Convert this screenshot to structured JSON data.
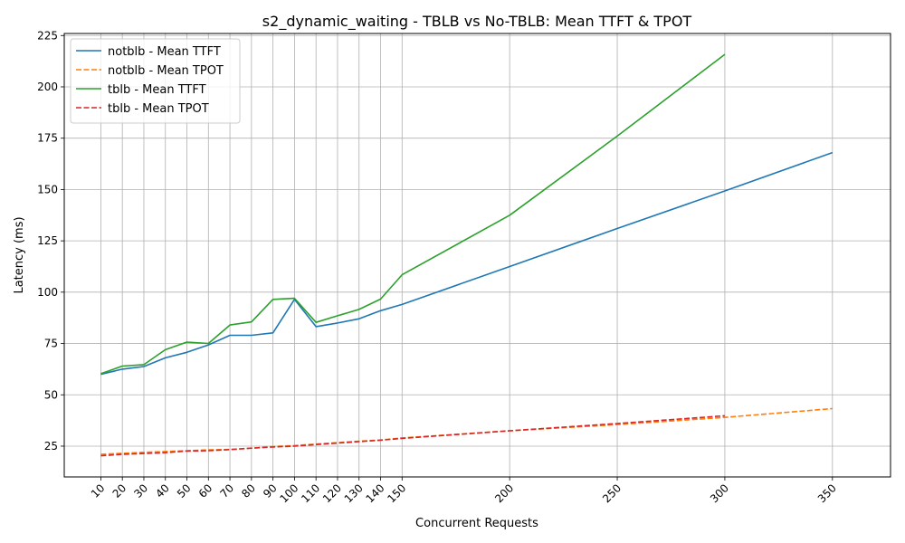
{
  "chart_data": {
    "type": "line",
    "title": "s2_dynamic_waiting - TBLB vs No-TBLB: Mean TTFT & TPOT",
    "xlabel": "Concurrent Requests",
    "ylabel": "Latency (ms)",
    "xlim": [
      -7,
      377
    ],
    "ylim": [
      10,
      226
    ],
    "xticks": [
      10,
      20,
      30,
      40,
      50,
      60,
      70,
      80,
      90,
      100,
      110,
      120,
      130,
      140,
      150,
      200,
      250,
      300,
      350
    ],
    "yticks": [
      25,
      50,
      75,
      100,
      125,
      150,
      175,
      200,
      225
    ],
    "grid": true,
    "legend_position": "top-left",
    "series": [
      {
        "name": "notblb - Mean TTFT",
        "color": "#1f77b4",
        "dashed": false,
        "x": [
          10,
          20,
          30,
          40,
          50,
          60,
          70,
          80,
          90,
          100,
          110,
          120,
          130,
          140,
          150,
          200,
          250,
          300,
          350
        ],
        "y": [
          60,
          62.5,
          63.8,
          68,
          70.7,
          74.3,
          79,
          79,
          80.2,
          96.5,
          83.2,
          85,
          87,
          91,
          94,
          112.5,
          131,
          149.3,
          168
        ]
      },
      {
        "name": "notblb - Mean TPOT",
        "color": "#ff7f0e",
        "dashed": true,
        "x": [
          10,
          20,
          30,
          40,
          50,
          60,
          70,
          80,
          90,
          100,
          110,
          120,
          130,
          140,
          150,
          200,
          250,
          300,
          350
        ],
        "y": [
          21,
          21.5,
          22,
          22.4,
          22.8,
          23.2,
          23.4,
          24,
          24.8,
          25.3,
          26,
          26.7,
          27.4,
          28,
          29,
          32.5,
          35.5,
          39,
          43.3
        ]
      },
      {
        "name": "tblb - Mean TTFT",
        "color": "#2ca02c",
        "dashed": false,
        "x": [
          10,
          20,
          30,
          40,
          50,
          60,
          70,
          80,
          90,
          100,
          110,
          120,
          130,
          140,
          150,
          200,
          250,
          300
        ],
        "y": [
          60.3,
          64,
          64.7,
          72,
          75.7,
          75,
          84,
          85.5,
          96.5,
          97,
          85.3,
          88.5,
          91.6,
          96.6,
          108.5,
          137.5,
          176,
          215.8
        ]
      },
      {
        "name": "tblb - Mean TPOT",
        "color": "#d62728",
        "dashed": true,
        "x": [
          10,
          20,
          30,
          40,
          50,
          60,
          70,
          80,
          90,
          100,
          110,
          120,
          130,
          140,
          150,
          200,
          250,
          300
        ],
        "y": [
          20.3,
          21,
          21.4,
          21.8,
          22.6,
          22.8,
          23.3,
          24,
          24.6,
          25,
          25.8,
          26.5,
          27.2,
          27.9,
          28.8,
          32.5,
          36,
          39.8
        ]
      }
    ]
  }
}
